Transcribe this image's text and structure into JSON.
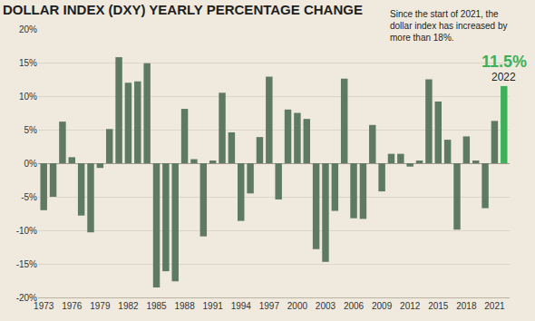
{
  "chart_data": {
    "type": "bar",
    "title": "DOLLAR INDEX (DXY) YEARLY PERCENTAGE CHANGE",
    "annotations": [
      "Since the start of 2021, the dollar index has increased by more than 18%.",
      "2022"
    ],
    "x": [
      1973,
      1974,
      1975,
      1976,
      1977,
      1978,
      1979,
      1980,
      1981,
      1982,
      1983,
      1984,
      1985,
      1986,
      1987,
      1988,
      1989,
      1990,
      1991,
      1992,
      1993,
      1994,
      1995,
      1996,
      1997,
      1998,
      1999,
      2000,
      2001,
      2002,
      2003,
      2004,
      2005,
      2006,
      2007,
      2008,
      2009,
      2010,
      2011,
      2012,
      2013,
      2014,
      2015,
      2016,
      2017,
      2018,
      2019,
      2020,
      2021,
      2022
    ],
    "values": [
      -7,
      -5,
      6.2,
      0.9,
      -7.8,
      -10.3,
      -0.7,
      5.1,
      15.8,
      12,
      12.2,
      14.9,
      -18.5,
      -16.1,
      -17.6,
      8.1,
      0.6,
      -10.9,
      0.4,
      10.5,
      4.6,
      -8.6,
      -4.5,
      3.9,
      12.9,
      -5.4,
      8,
      7.5,
      6.6,
      -12.8,
      -14.7,
      -7.1,
      12.6,
      -8.2,
      -8.3,
      5.7,
      -4.2,
      1.4,
      1.4,
      -0.5,
      0.4,
      12.5,
      9.2,
      3.5,
      -9.9,
      4.0,
      0.4,
      -6.7,
      6.3,
      11.5
    ],
    "value_labels": [
      null,
      null,
      null,
      null,
      null,
      null,
      null,
      null,
      null,
      null,
      null,
      null,
      null,
      null,
      null,
      null,
      null,
      null,
      null,
      null,
      null,
      null,
      null,
      null,
      null,
      null,
      null,
      null,
      null,
      null,
      null,
      null,
      null,
      null,
      null,
      null,
      null,
      null,
      null,
      null,
      null,
      null,
      null,
      null,
      null,
      null,
      null,
      null,
      null,
      "11.5%"
    ],
    "colors": [
      "#5e7a62",
      "#5e7a62",
      "#5e7a62",
      "#5e7a62",
      "#5e7a62",
      "#5e7a62",
      "#5e7a62",
      "#5e7a62",
      "#5e7a62",
      "#5e7a62",
      "#5e7a62",
      "#5e7a62",
      "#5e7a62",
      "#5e7a62",
      "#5e7a62",
      "#5e7a62",
      "#5e7a62",
      "#5e7a62",
      "#5e7a62",
      "#5e7a62",
      "#5e7a62",
      "#5e7a62",
      "#5e7a62",
      "#5e7a62",
      "#5e7a62",
      "#5e7a62",
      "#5e7a62",
      "#5e7a62",
      "#5e7a62",
      "#5e7a62",
      "#5e7a62",
      "#5e7a62",
      "#5e7a62",
      "#5e7a62",
      "#5e7a62",
      "#5e7a62",
      "#5e7a62",
      "#5e7a62",
      "#5e7a62",
      "#5e7a62",
      "#5e7a62",
      "#5e7a62",
      "#5e7a62",
      "#5e7a62",
      "#5e7a62",
      "#5e7a62",
      "#5e7a62",
      "#5e7a62",
      "#5e7a62",
      "#3fb05a"
    ],
    "xlim": [
      1972.4,
      2022.6
    ],
    "xticks": [
      1973,
      1976,
      1979,
      1982,
      1985,
      1988,
      1991,
      1994,
      1997,
      2000,
      2003,
      2006,
      2009,
      2012,
      2015,
      2018,
      2021
    ],
    "ylim": [
      -20,
      20
    ],
    "yticks": [
      {
        "value": -20,
        "label": "-20%"
      },
      {
        "value": -15,
        "label": "-15%"
      },
      {
        "value": -10,
        "label": "-10%"
      },
      {
        "value": -5,
        "label": "-5%"
      },
      {
        "value": 0,
        "label": "0%"
      },
      {
        "value": 5,
        "label": "5%"
      },
      {
        "value": 10,
        "label": "10%"
      },
      {
        "value": 15,
        "label": "15%"
      },
      {
        "value": 20,
        "label": "20%"
      }
    ],
    "grid": true
  }
}
